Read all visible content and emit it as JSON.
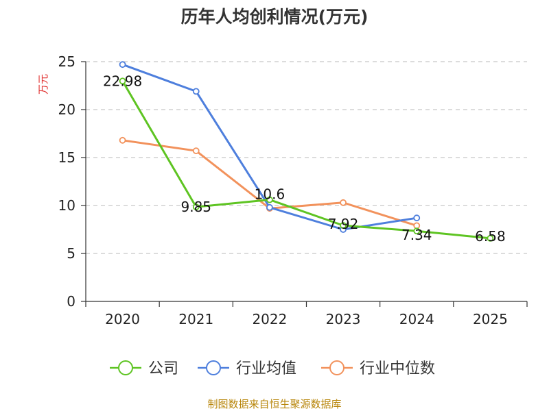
{
  "chart_data": {
    "type": "line",
    "title": "历年人均创利情况(万元)",
    "ylabel": "万元",
    "xlabel": "",
    "categories": [
      "2020",
      "2021",
      "2022",
      "2023",
      "2024",
      "2025"
    ],
    "ylim": [
      0,
      25
    ],
    "yticks": [
      0,
      5,
      10,
      15,
      20,
      25
    ],
    "grid": true,
    "legend_position": "bottom",
    "series": [
      {
        "name": "公司",
        "color": "#5ec422",
        "values": [
          22.98,
          9.85,
          10.6,
          7.92,
          7.34,
          6.58
        ],
        "labels": [
          "22.98",
          "9.85",
          "10.6",
          "7.92",
          "7.34",
          "6.58"
        ]
      },
      {
        "name": "行业均值",
        "color": "#4e7fdd",
        "values": [
          24.7,
          21.9,
          9.8,
          7.5,
          8.7,
          null
        ]
      },
      {
        "name": "行业中位数",
        "color": "#f2925c",
        "values": [
          16.8,
          15.7,
          9.7,
          10.3,
          7.9,
          null
        ]
      }
    ],
    "source": "制图数据来自恒生聚源数据库"
  }
}
